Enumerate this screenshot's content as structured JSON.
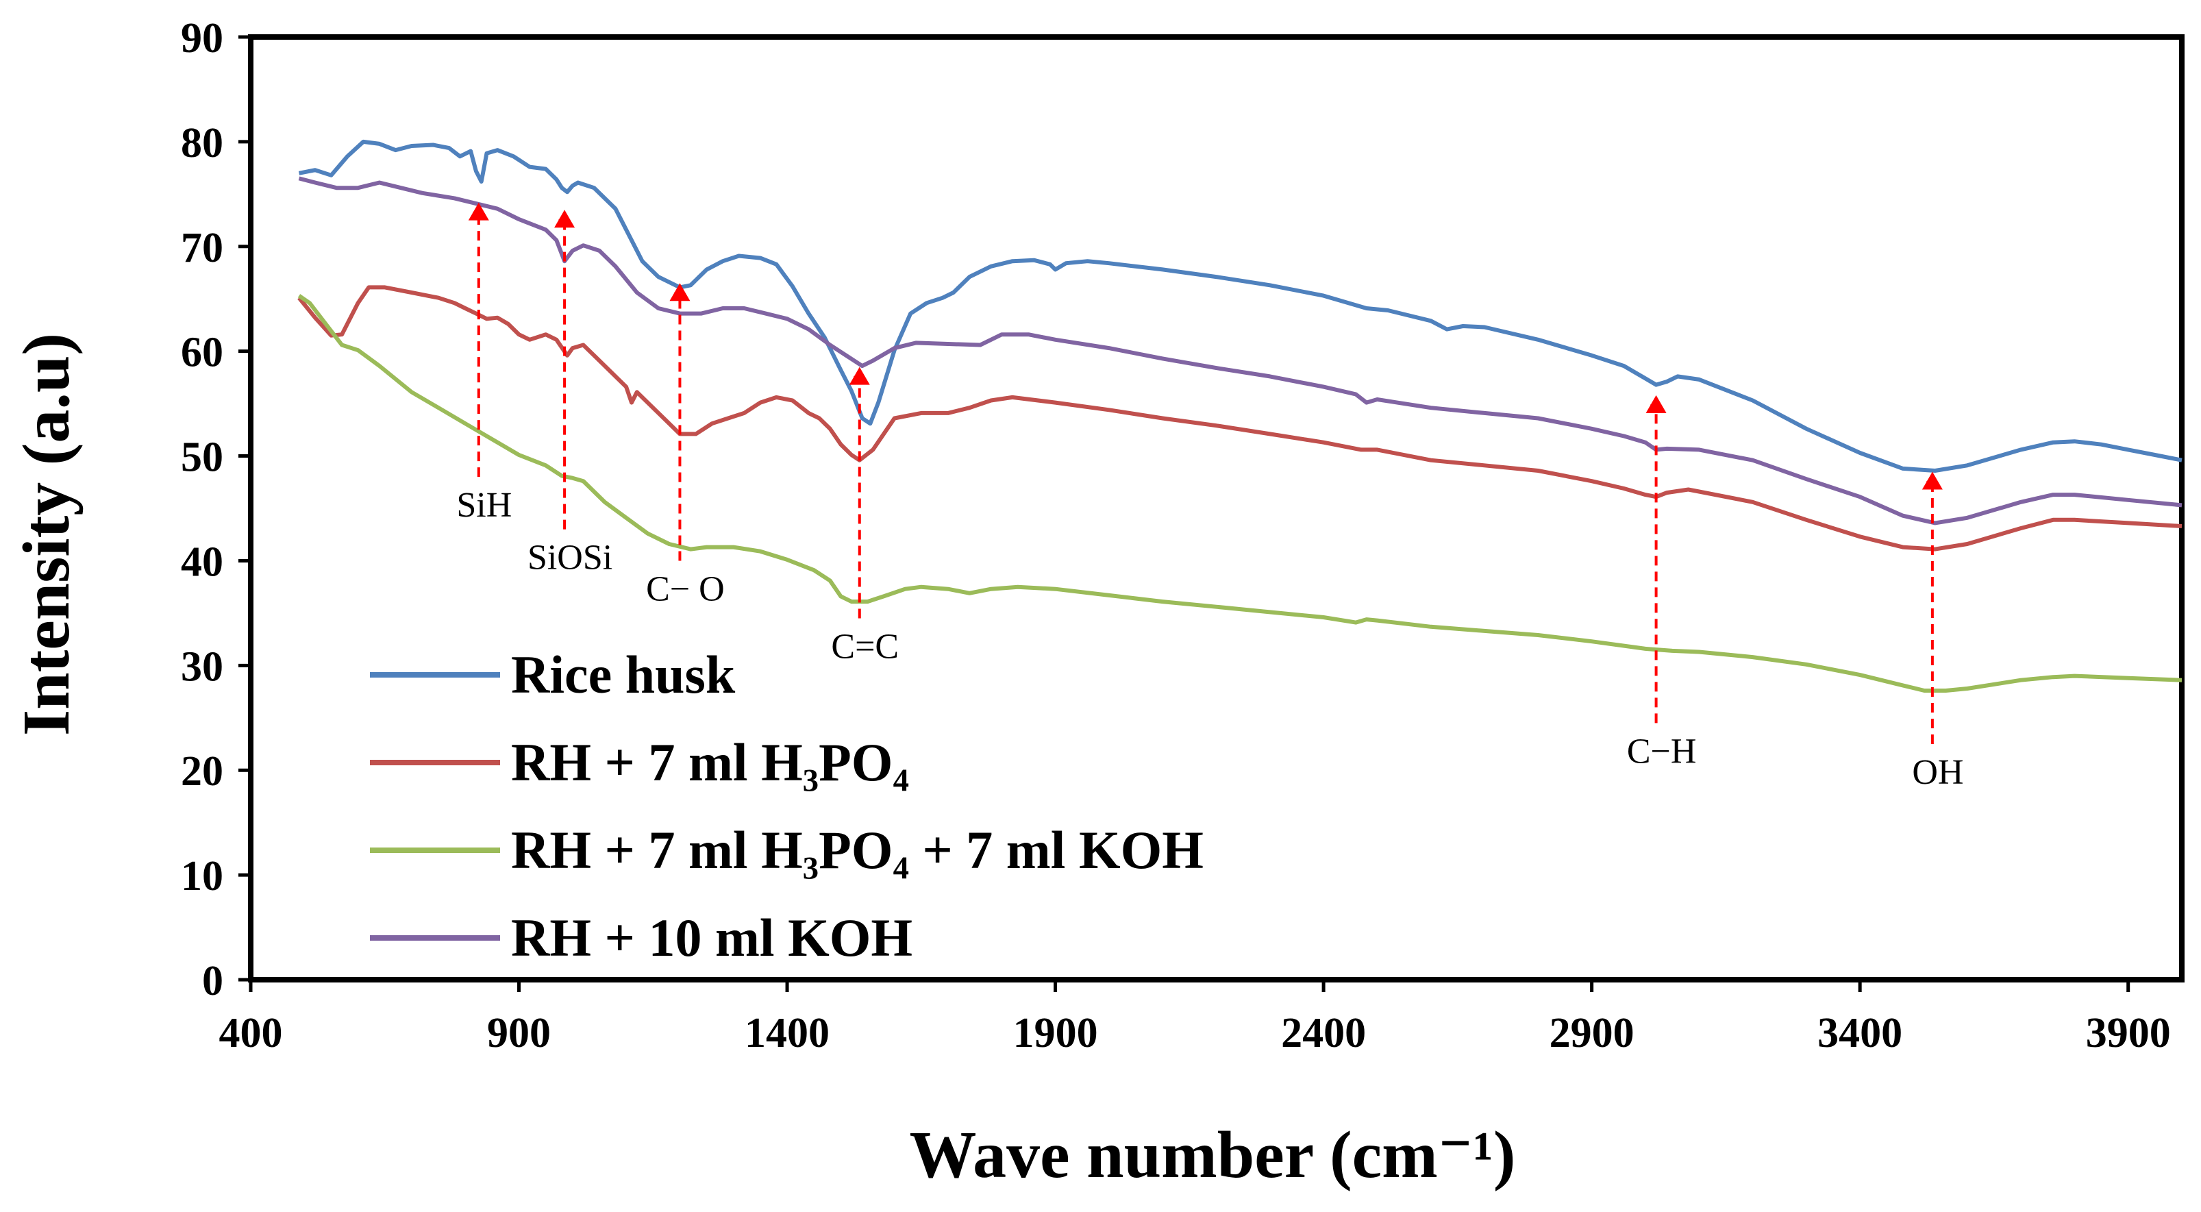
{
  "chart_data": {
    "type": "line",
    "title": "",
    "xlabel": "Wave number (cm⁻¹)",
    "ylabel": "Intensity (a.u)",
    "xlim": [
      400,
      4000
    ],
    "ylim": [
      0,
      90
    ],
    "xticks": [
      400,
      900,
      1400,
      1900,
      2400,
      2900,
      3400,
      3900
    ],
    "yticks": [
      0,
      10,
      20,
      30,
      40,
      50,
      60,
      70,
      80,
      90
    ],
    "grid": false,
    "legend_position": "bottom-left",
    "series": [
      {
        "name": "Rice husk",
        "color": "#4F81BD",
        "points": [
          [
            490,
            77
          ],
          [
            520,
            77.3
          ],
          [
            550,
            76.8
          ],
          [
            580,
            78.6
          ],
          [
            610,
            80
          ],
          [
            640,
            79.8
          ],
          [
            670,
            79.2
          ],
          [
            700,
            79.6
          ],
          [
            740,
            79.7
          ],
          [
            770,
            79.4
          ],
          [
            790,
            78.6
          ],
          [
            810,
            79.1
          ],
          [
            820,
            77.2
          ],
          [
            830,
            76.2
          ],
          [
            840,
            78.9
          ],
          [
            860,
            79.2
          ],
          [
            890,
            78.6
          ],
          [
            920,
            77.6
          ],
          [
            950,
            77.4
          ],
          [
            970,
            76.4
          ],
          [
            980,
            75.6
          ],
          [
            990,
            75.2
          ],
          [
            1000,
            75.8
          ],
          [
            1010,
            76.1
          ],
          [
            1040,
            75.6
          ],
          [
            1080,
            73.6
          ],
          [
            1100,
            71.6
          ],
          [
            1130,
            68.6
          ],
          [
            1160,
            67.1
          ],
          [
            1200,
            66.1
          ],
          [
            1220,
            66.3
          ],
          [
            1250,
            67.8
          ],
          [
            1280,
            68.6
          ],
          [
            1310,
            69.1
          ],
          [
            1350,
            68.9
          ],
          [
            1380,
            68.3
          ],
          [
            1410,
            66.2
          ],
          [
            1440,
            63.6
          ],
          [
            1470,
            61.3
          ],
          [
            1500,
            58.2
          ],
          [
            1520,
            56.2
          ],
          [
            1540,
            53.6
          ],
          [
            1555,
            53.1
          ],
          [
            1570,
            55.1
          ],
          [
            1600,
            60.1
          ],
          [
            1630,
            63.6
          ],
          [
            1660,
            64.6
          ],
          [
            1690,
            65.1
          ],
          [
            1710,
            65.6
          ],
          [
            1740,
            67.1
          ],
          [
            1780,
            68.1
          ],
          [
            1820,
            68.6
          ],
          [
            1860,
            68.7
          ],
          [
            1890,
            68.3
          ],
          [
            1900,
            67.8
          ],
          [
            1920,
            68.4
          ],
          [
            1960,
            68.6
          ],
          [
            2000,
            68.4
          ],
          [
            2100,
            67.8
          ],
          [
            2200,
            67.1
          ],
          [
            2300,
            66.3
          ],
          [
            2400,
            65.3
          ],
          [
            2460,
            64.4
          ],
          [
            2480,
            64.1
          ],
          [
            2520,
            63.9
          ],
          [
            2600,
            62.9
          ],
          [
            2630,
            62.1
          ],
          [
            2660,
            62.4
          ],
          [
            2700,
            62.3
          ],
          [
            2800,
            61.1
          ],
          [
            2900,
            59.6
          ],
          [
            2960,
            58.6
          ],
          [
            3000,
            57.4
          ],
          [
            3020,
            56.8
          ],
          [
            3040,
            57.1
          ],
          [
            3060,
            57.6
          ],
          [
            3100,
            57.3
          ],
          [
            3200,
            55.3
          ],
          [
            3300,
            52.6
          ],
          [
            3400,
            50.3
          ],
          [
            3480,
            48.8
          ],
          [
            3540,
            48.6
          ],
          [
            3600,
            49.1
          ],
          [
            3700,
            50.6
          ],
          [
            3760,
            51.3
          ],
          [
            3800,
            51.4
          ],
          [
            3850,
            51.1
          ],
          [
            3900,
            50.6
          ],
          [
            3950,
            50.1
          ],
          [
            4000,
            49.6
          ]
        ]
      },
      {
        "name": "RH + 7 ml H₃PO₄",
        "color": "#C0504D",
        "points": [
          [
            490,
            65.1
          ],
          [
            520,
            63.2
          ],
          [
            550,
            61.5
          ],
          [
            570,
            61.6
          ],
          [
            600,
            64.6
          ],
          [
            620,
            66.1
          ],
          [
            650,
            66.1
          ],
          [
            700,
            65.6
          ],
          [
            750,
            65.1
          ],
          [
            780,
            64.6
          ],
          [
            800,
            64.1
          ],
          [
            820,
            63.6
          ],
          [
            840,
            63.1
          ],
          [
            860,
            63.2
          ],
          [
            880,
            62.6
          ],
          [
            900,
            61.6
          ],
          [
            920,
            61.1
          ],
          [
            950,
            61.6
          ],
          [
            970,
            61.1
          ],
          [
            990,
            59.6
          ],
          [
            1000,
            60.3
          ],
          [
            1020,
            60.6
          ],
          [
            1050,
            59.1
          ],
          [
            1080,
            57.6
          ],
          [
            1100,
            56.6
          ],
          [
            1110,
            55.1
          ],
          [
            1120,
            56.1
          ],
          [
            1140,
            55.1
          ],
          [
            1170,
            53.6
          ],
          [
            1200,
            52.1
          ],
          [
            1230,
            52.1
          ],
          [
            1260,
            53.1
          ],
          [
            1290,
            53.6
          ],
          [
            1320,
            54.1
          ],
          [
            1350,
            55.1
          ],
          [
            1380,
            55.6
          ],
          [
            1410,
            55.3
          ],
          [
            1440,
            54.1
          ],
          [
            1460,
            53.6
          ],
          [
            1480,
            52.6
          ],
          [
            1500,
            51.1
          ],
          [
            1520,
            50.1
          ],
          [
            1535,
            49.6
          ],
          [
            1560,
            50.6
          ],
          [
            1600,
            53.6
          ],
          [
            1650,
            54.1
          ],
          [
            1700,
            54.1
          ],
          [
            1740,
            54.6
          ],
          [
            1780,
            55.3
          ],
          [
            1820,
            55.6
          ],
          [
            1900,
            55.1
          ],
          [
            2000,
            54.4
          ],
          [
            2100,
            53.6
          ],
          [
            2200,
            52.9
          ],
          [
            2300,
            52.1
          ],
          [
            2400,
            51.3
          ],
          [
            2470,
            50.6
          ],
          [
            2500,
            50.6
          ],
          [
            2600,
            49.6
          ],
          [
            2700,
            49.1
          ],
          [
            2800,
            48.6
          ],
          [
            2900,
            47.6
          ],
          [
            2960,
            46.9
          ],
          [
            3000,
            46.3
          ],
          [
            3020,
            46.1
          ],
          [
            3040,
            46.5
          ],
          [
            3080,
            46.8
          ],
          [
            3100,
            46.6
          ],
          [
            3200,
            45.6
          ],
          [
            3300,
            43.9
          ],
          [
            3400,
            42.3
          ],
          [
            3480,
            41.3
          ],
          [
            3540,
            41.1
          ],
          [
            3600,
            41.6
          ],
          [
            3700,
            43.1
          ],
          [
            3760,
            43.9
          ],
          [
            3800,
            43.9
          ],
          [
            3900,
            43.6
          ],
          [
            4000,
            43.3
          ]
        ]
      },
      {
        "name": "RH + 7 ml H₃PO₄ + 7 ml KOH",
        "color": "#9BBB59",
        "points": [
          [
            490,
            65.3
          ],
          [
            510,
            64.6
          ],
          [
            540,
            62.6
          ],
          [
            570,
            60.6
          ],
          [
            600,
            60.1
          ],
          [
            640,
            58.6
          ],
          [
            700,
            56.1
          ],
          [
            750,
            54.6
          ],
          [
            800,
            53.1
          ],
          [
            850,
            51.6
          ],
          [
            900,
            50.1
          ],
          [
            950,
            49.1
          ],
          [
            980,
            48.1
          ],
          [
            1000,
            47.9
          ],
          [
            1020,
            47.6
          ],
          [
            1060,
            45.6
          ],
          [
            1100,
            44.1
          ],
          [
            1140,
            42.6
          ],
          [
            1180,
            41.6
          ],
          [
            1220,
            41.1
          ],
          [
            1250,
            41.3
          ],
          [
            1300,
            41.3
          ],
          [
            1350,
            40.9
          ],
          [
            1400,
            40.1
          ],
          [
            1450,
            39.1
          ],
          [
            1480,
            38.1
          ],
          [
            1500,
            36.6
          ],
          [
            1520,
            36.1
          ],
          [
            1550,
            36.1
          ],
          [
            1580,
            36.6
          ],
          [
            1620,
            37.3
          ],
          [
            1650,
            37.5
          ],
          [
            1700,
            37.3
          ],
          [
            1740,
            36.9
          ],
          [
            1780,
            37.3
          ],
          [
            1830,
            37.5
          ],
          [
            1900,
            37.3
          ],
          [
            2000,
            36.7
          ],
          [
            2100,
            36.1
          ],
          [
            2200,
            35.6
          ],
          [
            2300,
            35.1
          ],
          [
            2400,
            34.6
          ],
          [
            2460,
            34.1
          ],
          [
            2480,
            34.4
          ],
          [
            2500,
            34.3
          ],
          [
            2600,
            33.7
          ],
          [
            2700,
            33.3
          ],
          [
            2800,
            32.9
          ],
          [
            2900,
            32.3
          ],
          [
            3000,
            31.6
          ],
          [
            3050,
            31.4
          ],
          [
            3100,
            31.3
          ],
          [
            3200,
            30.8
          ],
          [
            3300,
            30.1
          ],
          [
            3400,
            29.1
          ],
          [
            3480,
            28.1
          ],
          [
            3520,
            27.6
          ],
          [
            3560,
            27.6
          ],
          [
            3600,
            27.8
          ],
          [
            3700,
            28.6
          ],
          [
            3760,
            28.9
          ],
          [
            3800,
            29.0
          ],
          [
            3900,
            28.8
          ],
          [
            4000,
            28.6
          ]
        ]
      },
      {
        "name": "RH + 10 ml KOH",
        "color": "#8064A2",
        "points": [
          [
            490,
            76.5
          ],
          [
            520,
            76.1
          ],
          [
            560,
            75.6
          ],
          [
            600,
            75.6
          ],
          [
            640,
            76.1
          ],
          [
            680,
            75.6
          ],
          [
            720,
            75.1
          ],
          [
            780,
            74.6
          ],
          [
            820,
            74.1
          ],
          [
            860,
            73.6
          ],
          [
            900,
            72.6
          ],
          [
            950,
            71.6
          ],
          [
            970,
            70.6
          ],
          [
            985,
            68.6
          ],
          [
            1000,
            69.6
          ],
          [
            1020,
            70.1
          ],
          [
            1050,
            69.6
          ],
          [
            1080,
            68.1
          ],
          [
            1120,
            65.6
          ],
          [
            1160,
            64.1
          ],
          [
            1200,
            63.6
          ],
          [
            1240,
            63.6
          ],
          [
            1280,
            64.1
          ],
          [
            1320,
            64.1
          ],
          [
            1360,
            63.6
          ],
          [
            1400,
            63.1
          ],
          [
            1440,
            62.1
          ],
          [
            1480,
            60.6
          ],
          [
            1510,
            59.6
          ],
          [
            1540,
            58.6
          ],
          [
            1560,
            59.1
          ],
          [
            1600,
            60.3
          ],
          [
            1640,
            60.8
          ],
          [
            1700,
            60.7
          ],
          [
            1760,
            60.6
          ],
          [
            1800,
            61.6
          ],
          [
            1850,
            61.6
          ],
          [
            1900,
            61.1
          ],
          [
            2000,
            60.3
          ],
          [
            2100,
            59.3
          ],
          [
            2200,
            58.4
          ],
          [
            2300,
            57.6
          ],
          [
            2400,
            56.6
          ],
          [
            2460,
            55.9
          ],
          [
            2480,
            55.1
          ],
          [
            2500,
            55.4
          ],
          [
            2600,
            54.6
          ],
          [
            2700,
            54.1
          ],
          [
            2800,
            53.6
          ],
          [
            2900,
            52.6
          ],
          [
            2960,
            51.9
          ],
          [
            3000,
            51.3
          ],
          [
            3020,
            50.6
          ],
          [
            3040,
            50.7
          ],
          [
            3100,
            50.6
          ],
          [
            3200,
            49.6
          ],
          [
            3300,
            47.8
          ],
          [
            3400,
            46.1
          ],
          [
            3480,
            44.3
          ],
          [
            3540,
            43.6
          ],
          [
            3600,
            44.1
          ],
          [
            3700,
            45.6
          ],
          [
            3760,
            46.3
          ],
          [
            3800,
            46.3
          ],
          [
            3900,
            45.8
          ],
          [
            4000,
            45.3
          ]
        ]
      }
    ],
    "annotations": [
      {
        "label": "SiH",
        "x": 825,
        "y_arrow": 74.2,
        "y_line_end": 48
      },
      {
        "label": "SiOSi",
        "x": 985,
        "y_arrow": 73.5,
        "y_line_end": 43
      },
      {
        "label": "C− O",
        "x": 1200,
        "y_arrow": 66.5,
        "y_line_end": 40
      },
      {
        "label": "C=C",
        "x": 1535,
        "y_arrow": 58.5,
        "y_line_end": 34.5
      },
      {
        "label": "C−H",
        "x": 3020,
        "y_arrow": 55.8,
        "y_line_end": 24.5
      },
      {
        "label": "OH",
        "x": 3535,
        "y_arrow": 48.5,
        "y_line_end": 22.5
      }
    ],
    "annotation_color": "#FF0000"
  }
}
